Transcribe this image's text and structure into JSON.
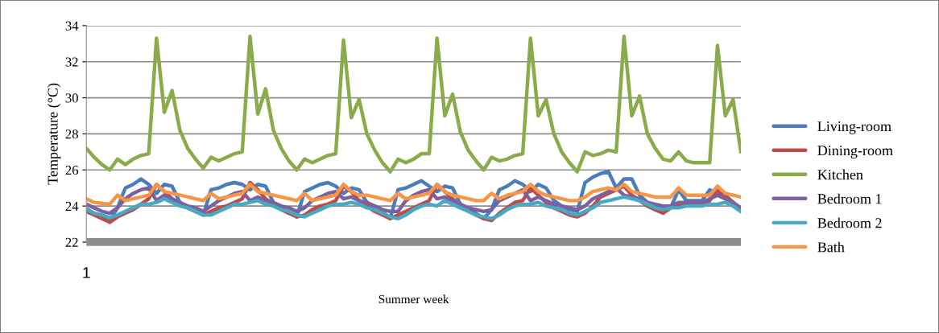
{
  "chart_data": {
    "type": "line",
    "xlabel": "Summer week",
    "ylabel": "Temperature (°C)",
    "categories": [
      "1",
      null,
      null,
      null,
      null,
      null,
      null,
      null,
      null,
      null,
      null,
      null,
      null,
      null,
      null,
      null,
      null,
      null,
      null,
      null,
      null,
      null,
      null,
      null,
      null,
      null,
      null,
      null,
      null,
      null,
      null,
      null,
      null,
      null,
      null,
      null,
      null,
      null,
      null,
      null,
      null,
      null,
      null,
      null,
      null,
      null,
      null,
      null,
      null,
      null,
      null,
      null,
      null,
      null,
      null,
      null,
      null,
      null,
      null,
      null,
      null,
      null,
      null,
      null,
      null,
      null,
      null,
      null,
      null,
      null,
      null,
      null,
      null,
      null,
      null,
      null,
      null,
      null,
      null,
      null,
      null,
      null,
      null,
      null,
      null
    ],
    "ylim": [
      22,
      34
    ],
    "yticks": [
      22,
      24,
      26,
      28,
      30,
      32,
      34
    ],
    "grid": "y",
    "legend": "right",
    "marker": "none",
    "line_style": "solid",
    "series": [
      {
        "name": "Living-room",
        "color": "#4a7ebb",
        "values": [
          23.85,
          23.6,
          23.4,
          23.2,
          23.9,
          25.0,
          25.2,
          25.5,
          25.2,
          24.7,
          25.2,
          25.1,
          24.2,
          23.9,
          23.7,
          23.5,
          24.9,
          25.0,
          25.2,
          25.3,
          25.2,
          24.9,
          25.2,
          25.1,
          24.2,
          23.9,
          23.6,
          23.4,
          24.8,
          25.0,
          25.2,
          25.3,
          25.1,
          24.7,
          25.0,
          24.9,
          24.2,
          23.9,
          23.7,
          23.3,
          24.9,
          25.0,
          25.2,
          25.4,
          25.1,
          24.8,
          25.1,
          25.0,
          24.1,
          23.8,
          23.6,
          23.3,
          23.8,
          24.9,
          25.1,
          25.4,
          25.2,
          24.8,
          25.2,
          25.0,
          24.3,
          24.0,
          23.8,
          23.7,
          25.3,
          25.6,
          25.8,
          25.9,
          25.0,
          25.5,
          25.5,
          24.6,
          24.2,
          24.0,
          23.9,
          23.9,
          24.9,
          24.3,
          24.3,
          24.3,
          24.9,
          24.7,
          24.6,
          24.2,
          23.7
        ]
      },
      {
        "name": "Dining-room",
        "color": "#be4b48",
        "values": [
          23.7,
          23.5,
          23.3,
          23.1,
          23.4,
          23.6,
          23.8,
          24.1,
          24.4,
          25.2,
          24.8,
          24.4,
          24.1,
          23.9,
          23.7,
          23.5,
          23.7,
          23.9,
          24.0,
          24.2,
          24.4,
          25.3,
          24.9,
          24.4,
          24.1,
          23.8,
          23.6,
          23.4,
          23.5,
          23.8,
          24.0,
          24.1,
          24.3,
          25.1,
          24.8,
          24.3,
          24.0,
          23.7,
          23.5,
          23.3,
          23.5,
          23.7,
          23.9,
          24.1,
          24.3,
          25.2,
          24.8,
          24.4,
          24.0,
          23.8,
          23.5,
          23.3,
          23.2,
          23.6,
          23.9,
          24.2,
          24.3,
          25.0,
          24.6,
          24.2,
          23.9,
          23.7,
          23.5,
          23.4,
          23.6,
          24.0,
          24.5,
          24.7,
          24.9,
          25.1,
          24.6,
          24.3,
          24.0,
          23.8,
          23.6,
          23.9,
          24.1,
          24.1,
          24.1,
          24.1,
          24.3,
          24.9,
          24.5,
          24.2,
          23.8
        ]
      },
      {
        "name": "Kitchen",
        "color": "#8aab4a",
        "values": [
          27.2,
          26.7,
          26.3,
          26.0,
          26.6,
          26.3,
          26.6,
          26.8,
          26.9,
          33.3,
          29.2,
          30.4,
          28.2,
          27.2,
          26.6,
          26.1,
          26.7,
          26.5,
          26.7,
          26.9,
          27.0,
          33.4,
          29.1,
          30.5,
          28.2,
          27.2,
          26.5,
          26.0,
          26.6,
          26.4,
          26.6,
          26.8,
          26.9,
          33.2,
          28.9,
          29.9,
          28.0,
          27.1,
          26.4,
          25.9,
          26.6,
          26.4,
          26.6,
          26.9,
          26.9,
          33.3,
          29.0,
          30.2,
          28.1,
          27.1,
          26.5,
          26.0,
          26.7,
          26.5,
          26.6,
          26.8,
          26.9,
          33.3,
          29.0,
          29.9,
          28.0,
          27.0,
          26.4,
          25.9,
          27.0,
          26.8,
          26.9,
          27.1,
          27.0,
          33.4,
          29.0,
          30.1,
          28.0,
          27.2,
          26.6,
          26.5,
          27.0,
          26.5,
          26.4,
          26.4,
          26.4,
          32.9,
          29.0,
          29.9,
          27.0
        ]
      },
      {
        "name": "Bedroom 1",
        "color": "#7d60a0",
        "values": [
          24.1,
          23.9,
          23.7,
          23.6,
          23.9,
          24.4,
          24.7,
          24.9,
          25.0,
          24.3,
          24.6,
          24.4,
          24.2,
          24.0,
          23.9,
          23.7,
          24.0,
          24.3,
          24.5,
          24.7,
          24.8,
          24.3,
          24.5,
          24.3,
          24.2,
          24.0,
          23.9,
          23.7,
          23.9,
          24.3,
          24.5,
          24.7,
          24.8,
          24.4,
          24.5,
          24.3,
          24.2,
          24.0,
          23.8,
          23.7,
          23.7,
          24.3,
          24.6,
          24.8,
          24.9,
          24.4,
          24.5,
          24.3,
          24.1,
          23.9,
          23.8,
          23.7,
          23.8,
          24.3,
          24.5,
          24.7,
          24.9,
          24.3,
          24.5,
          24.3,
          24.1,
          24.0,
          23.9,
          23.8,
          24.0,
          24.4,
          24.6,
          24.8,
          25.0,
          24.6,
          24.5,
          24.4,
          24.2,
          24.1,
          24.0,
          24.0,
          24.2,
          24.2,
          24.2,
          24.2,
          24.4,
          24.6,
          24.4,
          24.2,
          23.9
        ]
      },
      {
        "name": "Bedroom 2",
        "color": "#46aac5",
        "values": [
          23.8,
          23.6,
          23.5,
          23.35,
          23.5,
          23.7,
          23.9,
          24.1,
          24.1,
          24.2,
          24.4,
          24.2,
          24.0,
          23.9,
          23.7,
          23.5,
          23.5,
          23.7,
          23.9,
          24.1,
          24.1,
          24.2,
          24.3,
          24.1,
          24.0,
          23.8,
          23.7,
          23.5,
          23.4,
          23.6,
          23.8,
          24.0,
          24.1,
          24.1,
          24.2,
          24.1,
          23.9,
          23.8,
          23.6,
          23.4,
          23.3,
          23.5,
          23.8,
          24.0,
          24.1,
          24.0,
          24.3,
          24.1,
          23.9,
          23.7,
          23.5,
          23.4,
          23.3,
          23.5,
          23.8,
          24.0,
          24.1,
          24.1,
          24.2,
          24.0,
          23.9,
          23.8,
          23.6,
          23.5,
          23.7,
          23.9,
          24.2,
          24.3,
          24.4,
          24.5,
          24.4,
          24.3,
          24.1,
          23.9,
          23.8,
          23.9,
          23.9,
          24.0,
          24.0,
          24.0,
          24.1,
          24.1,
          24.2,
          24.0,
          23.7
        ]
      },
      {
        "name": "Bath",
        "color": "#f79646",
        "values": [
          24.4,
          24.2,
          24.15,
          24.1,
          24.6,
          24.3,
          24.4,
          24.5,
          24.6,
          25.2,
          24.8,
          24.7,
          24.6,
          24.5,
          24.4,
          24.3,
          24.7,
          24.4,
          24.5,
          24.6,
          24.7,
          25.2,
          24.8,
          24.7,
          24.6,
          24.5,
          24.4,
          24.3,
          24.7,
          24.3,
          24.4,
          24.5,
          24.6,
          25.2,
          24.8,
          24.6,
          24.6,
          24.5,
          24.4,
          24.3,
          24.7,
          24.4,
          24.5,
          24.6,
          24.7,
          25.2,
          24.8,
          24.6,
          24.5,
          24.4,
          24.3,
          24.3,
          24.7,
          24.4,
          24.6,
          24.7,
          24.8,
          25.2,
          24.8,
          24.6,
          24.5,
          24.4,
          24.3,
          24.3,
          24.5,
          24.8,
          24.9,
          25.0,
          24.9,
          25.2,
          24.8,
          24.7,
          24.6,
          24.5,
          24.5,
          24.5,
          25.0,
          24.6,
          24.6,
          24.6,
          24.6,
          25.1,
          24.7,
          24.6,
          24.5
        ]
      }
    ]
  }
}
